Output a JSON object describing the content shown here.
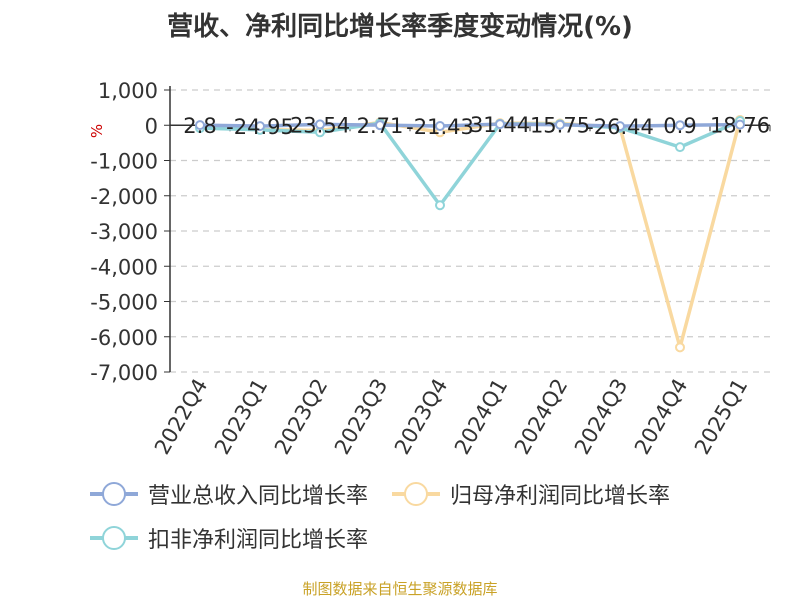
{
  "title": "营收、净利同比增长率季度变动情况(%)",
  "source": "制图数据来自恒生聚源数据库",
  "chart_data": {
    "type": "line",
    "title": "营收、净利同比增长率季度变动情况(%)",
    "ylabel": "%",
    "xlabel": "",
    "ylim": [
      -7000,
      1000
    ],
    "yticks": [
      1000,
      0,
      -1000,
      -2000,
      -3000,
      -4000,
      -5000,
      -6000,
      -7000
    ],
    "ytick_labels": [
      "1,000",
      "0",
      "-1,000",
      "-2,000",
      "-3,000",
      "-4,000",
      "-5,000",
      "-6,000",
      "-7,000"
    ],
    "grid": true,
    "legend_position": "bottom",
    "categories": [
      "2022Q4",
      "2023Q1",
      "2023Q2",
      "2023Q3",
      "2023Q4",
      "2024Q1",
      "2024Q2",
      "2024Q3",
      "2024Q4",
      "2025Q1"
    ],
    "series": [
      {
        "name": "营业总收入同比增长率",
        "color": "#8fa8d8",
        "values": [
          2.8,
          -24.95,
          23.54,
          2.71,
          -21.43,
          31.44,
          15.75,
          -26.44,
          0.9,
          18.76
        ],
        "labels": [
          "2.8",
          "-24.95",
          "23.54",
          "2.71",
          "-21.43",
          "31.44",
          "15.75",
          "-26.44",
          "0.9",
          "18.76"
        ]
      },
      {
        "name": "归母净利润同比增长率",
        "color": "#f9d9a0",
        "values": [
          -50,
          -120,
          -150,
          80,
          -200,
          60,
          50,
          -60,
          -6300,
          150
        ]
      },
      {
        "name": "扣非净利润同比增长率",
        "color": "#8fd4d9",
        "values": [
          -80,
          -130,
          -200,
          60,
          -2270,
          40,
          30,
          -70,
          -620,
          120
        ]
      }
    ]
  }
}
